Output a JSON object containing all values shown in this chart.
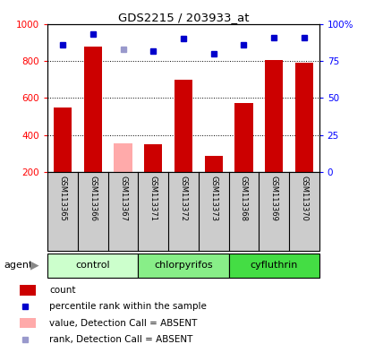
{
  "title": "GDS2215 / 203933_at",
  "samples": [
    "GSM113365",
    "GSM113366",
    "GSM113367",
    "GSM113371",
    "GSM113372",
    "GSM113373",
    "GSM113368",
    "GSM113369",
    "GSM113370"
  ],
  "groups": [
    {
      "name": "control",
      "span": [
        0,
        2
      ],
      "color": "#ccffcc"
    },
    {
      "name": "chlorpyrifos",
      "span": [
        3,
        5
      ],
      "color": "#88ee88"
    },
    {
      "name": "cyfluthrin",
      "span": [
        6,
        8
      ],
      "color": "#44dd44"
    }
  ],
  "bar_values": [
    550,
    880,
    355,
    350,
    700,
    285,
    575,
    805,
    790
  ],
  "bar_colors": [
    "#cc0000",
    "#cc0000",
    "#ffaaaa",
    "#cc0000",
    "#cc0000",
    "#cc0000",
    "#cc0000",
    "#cc0000",
    "#cc0000"
  ],
  "rank_values": [
    86,
    93,
    83,
    82,
    90,
    80,
    86,
    91,
    91
  ],
  "rank_colors": [
    "#0000cc",
    "#0000cc",
    "#9999cc",
    "#0000cc",
    "#0000cc",
    "#0000cc",
    "#0000cc",
    "#0000cc",
    "#0000cc"
  ],
  "ylim_left": [
    200,
    1000
  ],
  "ylim_right": [
    0,
    100
  ],
  "yticks_left": [
    200,
    400,
    600,
    800,
    1000
  ],
  "ytick_labels_left": [
    "200",
    "400",
    "600",
    "800",
    "1000"
  ],
  "yticks_right": [
    0,
    25,
    50,
    75,
    100
  ],
  "ytick_labels_right": [
    "0",
    "25",
    "50",
    "75",
    "100%"
  ],
  "grid_lines": [
    400,
    600,
    800
  ],
  "legend_items": [
    {
      "label": "count",
      "color": "#cc0000",
      "is_rank": false
    },
    {
      "label": "percentile rank within the sample",
      "color": "#0000cc",
      "is_rank": true
    },
    {
      "label": "value, Detection Call = ABSENT",
      "color": "#ffaaaa",
      "is_rank": false
    },
    {
      "label": "rank, Detection Call = ABSENT",
      "color": "#9999cc",
      "is_rank": true
    }
  ],
  "bg_color": "#ffffff",
  "label_bg_color": "#cccccc",
  "bar_width": 0.6
}
